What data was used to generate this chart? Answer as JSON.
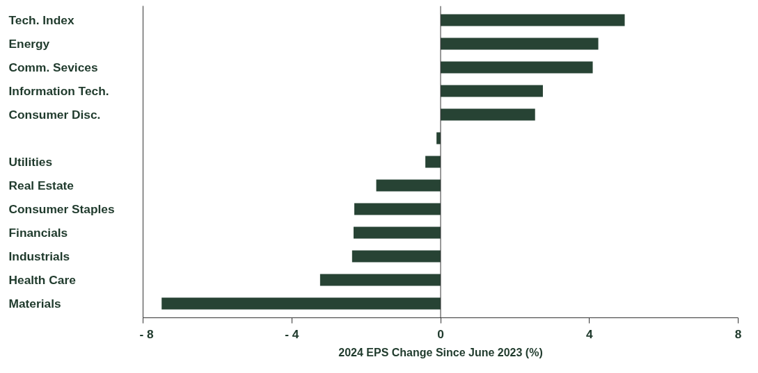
{
  "chart_data": {
    "type": "bar",
    "orientation": "horizontal",
    "categories": [
      "Tech. Index",
      "Energy",
      "Comm. Sevices",
      "Information Tech.",
      "Consumer Disc.",
      null,
      "Utilities",
      "Real Estate",
      "Consumer Staples",
      "Financials",
      "Industrials",
      "Health Care",
      "Materials"
    ],
    "values": [
      4.95,
      4.24,
      4.09,
      2.75,
      2.54,
      -0.11,
      -0.41,
      -1.73,
      -2.32,
      -2.34,
      -2.38,
      -3.24,
      -7.5
    ],
    "color": "#274334",
    "xlabel": "2024 EPS Change Since June 2023 (%)",
    "xlim": [
      -8,
      8
    ],
    "xticks": [
      {
        "value": -8,
        "label": "- 8"
      },
      {
        "value": -4,
        "label": "- 4"
      },
      0,
      4,
      8
    ],
    "ref_lines": [
      {
        "axis": "x",
        "value": 0,
        "label": null
      }
    ],
    "grid": false
  }
}
